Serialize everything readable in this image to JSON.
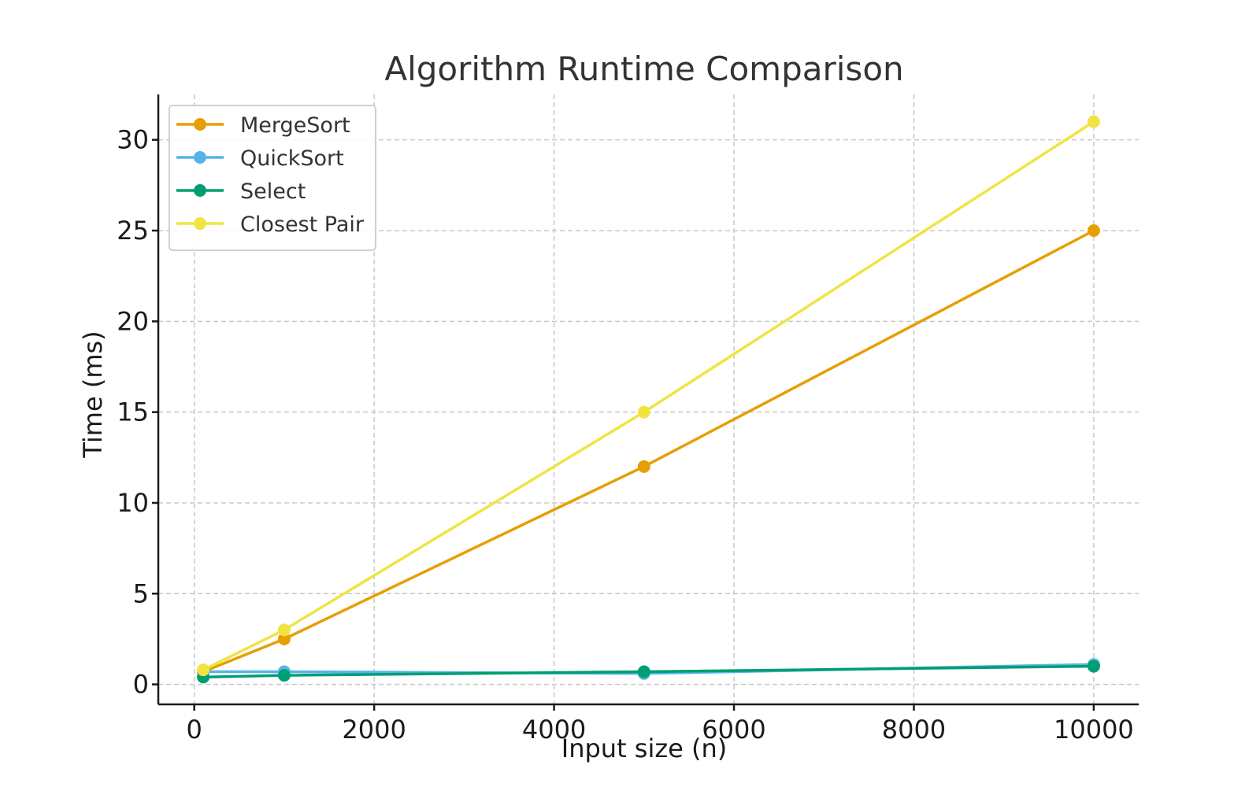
{
  "chart_data": {
    "type": "line",
    "title": "Algorithm Runtime Comparison",
    "xlabel": "Input size (n)",
    "ylabel": "Time (ms)",
    "x": [
      100,
      1000,
      5000,
      10000
    ],
    "xlim": [
      -400,
      10500
    ],
    "ylim": [
      -1.1,
      32.5
    ],
    "xticks": [
      0,
      2000,
      4000,
      6000,
      8000,
      10000
    ],
    "yticks": [
      0,
      5,
      10,
      15,
      20,
      25,
      30
    ],
    "grid": true,
    "legend_position": "top-left",
    "series": [
      {
        "name": "MergeSort",
        "color": "#E69F00",
        "values": [
          0.7,
          2.5,
          12,
          25
        ]
      },
      {
        "name": "QuickSort",
        "color": "#56B4E9",
        "values": [
          0.7,
          0.7,
          0.6,
          1.1
        ]
      },
      {
        "name": "Select",
        "color": "#009E73",
        "values": [
          0.4,
          0.5,
          0.7,
          1.0
        ]
      },
      {
        "name": "Closest Pair",
        "color": "#F0E442",
        "values": [
          0.8,
          3.0,
          15,
          31
        ]
      }
    ]
  }
}
